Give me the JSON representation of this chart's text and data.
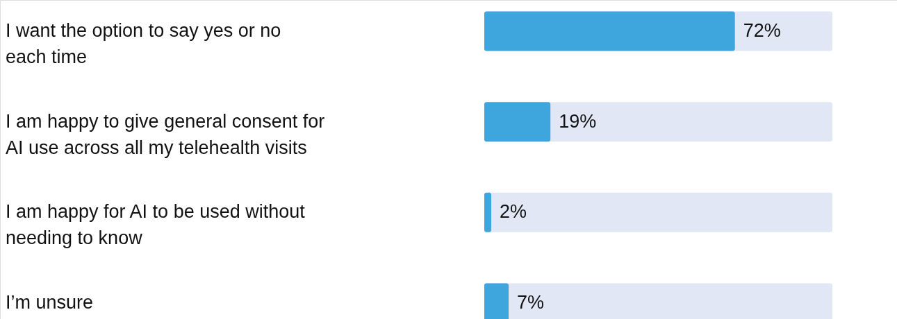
{
  "chart_data": {
    "type": "bar",
    "orientation": "horizontal",
    "categories": [
      "I want the option to say yes or no each time",
      "I am happy to give general consent for AI use across all my telehealth visits",
      "I am happy for AI to be used without needing to know",
      "I’m unsure"
    ],
    "values": [
      72,
      19,
      2,
      7
    ],
    "value_labels": [
      "72%",
      "19%",
      "2%",
      "7%"
    ],
    "color": "#3ea6dd",
    "xlim": [
      0,
      100
    ],
    "tick_labels": "y"
  }
}
